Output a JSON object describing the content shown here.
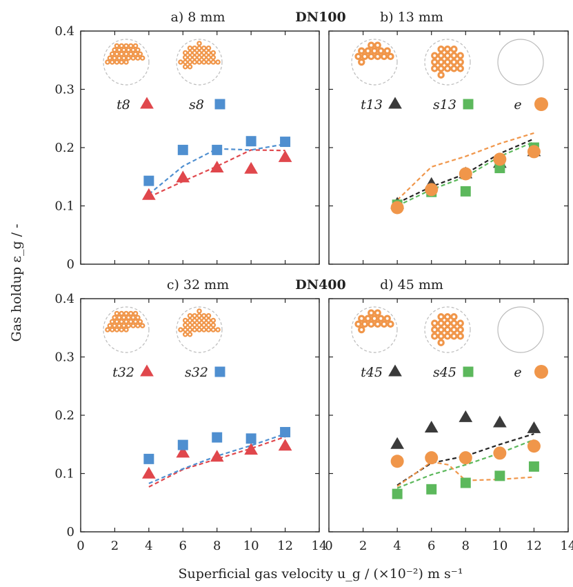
{
  "figure": {
    "group_labels": [
      "DN100",
      "DN400"
    ],
    "ylabel": "Gas holdup ε_g / -",
    "xlabel": "Superficial gas velocity u_g / (×10⁻²) m s⁻¹",
    "colors": {
      "t": "#e0474c",
      "s_blue": "#4f8fd0",
      "s_green": "#5cb85c",
      "e": "#f0964a",
      "tri_dark": "#3a3a3a",
      "black_line": "#222222"
    }
  },
  "chart_data": [
    {
      "id": "a",
      "type": "scatter",
      "title": "a) 8 mm",
      "xlim": [
        0,
        14
      ],
      "ylim": [
        0,
        0.4
      ],
      "xticks": [
        "0",
        "2",
        "4",
        "6",
        "8",
        "10",
        "12",
        "14"
      ],
      "yticks": [
        "0",
        "0.1",
        "0.2",
        "0.3",
        "0.4"
      ],
      "series": [
        {
          "name": "t8",
          "marker": "triangle",
          "color": "#e0474c",
          "x": [
            4,
            6,
            8,
            10,
            12
          ],
          "y": [
            0.118,
            0.148,
            0.165,
            0.163,
            0.183
          ]
        },
        {
          "name": "s8",
          "marker": "square",
          "color": "#4f8fd0",
          "x": [
            4,
            6,
            8,
            10,
            12
          ],
          "y": [
            0.143,
            0.196,
            0.196,
            0.211,
            0.21
          ]
        }
      ],
      "fits": [
        {
          "color": "#e0474c",
          "x": [
            4,
            6,
            8,
            10,
            12
          ],
          "y": [
            0.115,
            0.142,
            0.168,
            0.196,
            0.195
          ]
        },
        {
          "color": "#4f8fd0",
          "x": [
            4,
            6,
            8,
            10,
            12
          ],
          "y": [
            0.12,
            0.168,
            0.198,
            0.196,
            0.206
          ]
        }
      ]
    },
    {
      "id": "b",
      "type": "scatter",
      "title": "b) 13 mm",
      "xlim": [
        0,
        14
      ],
      "ylim": [
        0,
        0.4
      ],
      "xticks": [
        "0",
        "2",
        "4",
        "6",
        "8",
        "10",
        "12",
        "14"
      ],
      "yticks": [
        "0",
        "0.1",
        "0.2",
        "0.3",
        "0.4"
      ],
      "series": [
        {
          "name": "t13",
          "marker": "triangle",
          "color": "#3a3a3a",
          "x": [
            4,
            6,
            8,
            10,
            12
          ],
          "y": [
            0.103,
            0.137,
            0.155,
            0.173,
            0.193
          ]
        },
        {
          "name": "s13",
          "marker": "square",
          "color": "#5cb85c",
          "x": [
            4,
            6,
            8,
            10,
            12
          ],
          "y": [
            0.102,
            0.124,
            0.125,
            0.165,
            0.2
          ]
        },
        {
          "name": "e",
          "marker": "circle",
          "color": "#f0964a",
          "x": [
            4,
            6,
            8,
            10,
            12
          ],
          "y": [
            0.097,
            0.128,
            0.155,
            0.18,
            0.193
          ]
        }
      ],
      "fits": [
        {
          "color": "#222222",
          "x": [
            4,
            6,
            8,
            10,
            12
          ],
          "y": [
            0.105,
            0.133,
            0.155,
            0.19,
            0.215
          ]
        },
        {
          "color": "#5cb85c",
          "x": [
            4,
            6,
            8,
            10,
            12
          ],
          "y": [
            0.1,
            0.128,
            0.15,
            0.185,
            0.21
          ]
        },
        {
          "color": "#f0964a",
          "x": [
            4,
            6,
            8,
            10,
            12
          ],
          "y": [
            0.11,
            0.167,
            0.185,
            0.207,
            0.225
          ]
        }
      ]
    },
    {
      "id": "c",
      "type": "scatter",
      "title": "c) 32 mm",
      "xlim": [
        0,
        14
      ],
      "ylim": [
        0,
        0.4
      ],
      "xticks": [
        "0",
        "2",
        "4",
        "6",
        "8",
        "10",
        "12",
        "14"
      ],
      "yticks": [
        "0",
        "0.1",
        "0.2",
        "0.3",
        "0.4"
      ],
      "series": [
        {
          "name": "t32",
          "marker": "triangle",
          "color": "#e0474c",
          "x": [
            4,
            6,
            8,
            10,
            12
          ],
          "y": [
            0.099,
            0.135,
            0.128,
            0.14,
            0.147
          ]
        },
        {
          "name": "s32",
          "marker": "square",
          "color": "#4f8fd0",
          "x": [
            4,
            6,
            8,
            10,
            12
          ],
          "y": [
            0.125,
            0.149,
            0.162,
            0.16,
            0.171
          ]
        }
      ],
      "fits": [
        {
          "color": "#e0474c",
          "x": [
            4,
            6,
            8,
            10,
            12
          ],
          "y": [
            0.077,
            0.107,
            0.125,
            0.143,
            0.163
          ]
        },
        {
          "color": "#4f8fd0",
          "x": [
            4,
            6,
            8,
            10,
            12
          ],
          "y": [
            0.083,
            0.108,
            0.13,
            0.148,
            0.168
          ]
        }
      ]
    },
    {
      "id": "d",
      "type": "scatter",
      "title": "d) 45 mm",
      "xlim": [
        0,
        14
      ],
      "ylim": [
        0,
        0.4
      ],
      "xticks": [
        "0",
        "2",
        "4",
        "6",
        "8",
        "10",
        "12",
        "14"
      ],
      "yticks": [
        "0",
        "0.1",
        "0.2",
        "0.3",
        "0.4"
      ],
      "series": [
        {
          "name": "t45",
          "marker": "triangle",
          "color": "#3a3a3a",
          "x": [
            4,
            6,
            8,
            10,
            12
          ],
          "y": [
            0.15,
            0.178,
            0.196,
            0.187,
            0.177
          ]
        },
        {
          "name": "s45",
          "marker": "square",
          "color": "#5cb85c",
          "x": [
            4,
            6,
            8,
            10,
            12
          ],
          "y": [
            0.065,
            0.073,
            0.084,
            0.096,
            0.112
          ]
        },
        {
          "name": "e",
          "marker": "circle",
          "color": "#f0964a",
          "x": [
            4,
            6,
            8,
            10,
            12
          ],
          "y": [
            0.121,
            0.127,
            0.127,
            0.135,
            0.147
          ]
        }
      ],
      "fits": [
        {
          "color": "#222222",
          "x": [
            4,
            6,
            8,
            10,
            12
          ],
          "y": [
            0.08,
            0.118,
            0.13,
            0.15,
            0.168
          ]
        },
        {
          "color": "#5cb85c",
          "x": [
            4,
            6,
            8,
            10,
            12
          ],
          "y": [
            0.075,
            0.098,
            0.115,
            0.135,
            0.158
          ]
        },
        {
          "color": "#f0964a",
          "x": [
            4,
            6,
            7,
            8,
            10,
            12
          ],
          "y": [
            0.078,
            0.12,
            0.115,
            0.088,
            0.09,
            0.094
          ]
        }
      ]
    }
  ]
}
